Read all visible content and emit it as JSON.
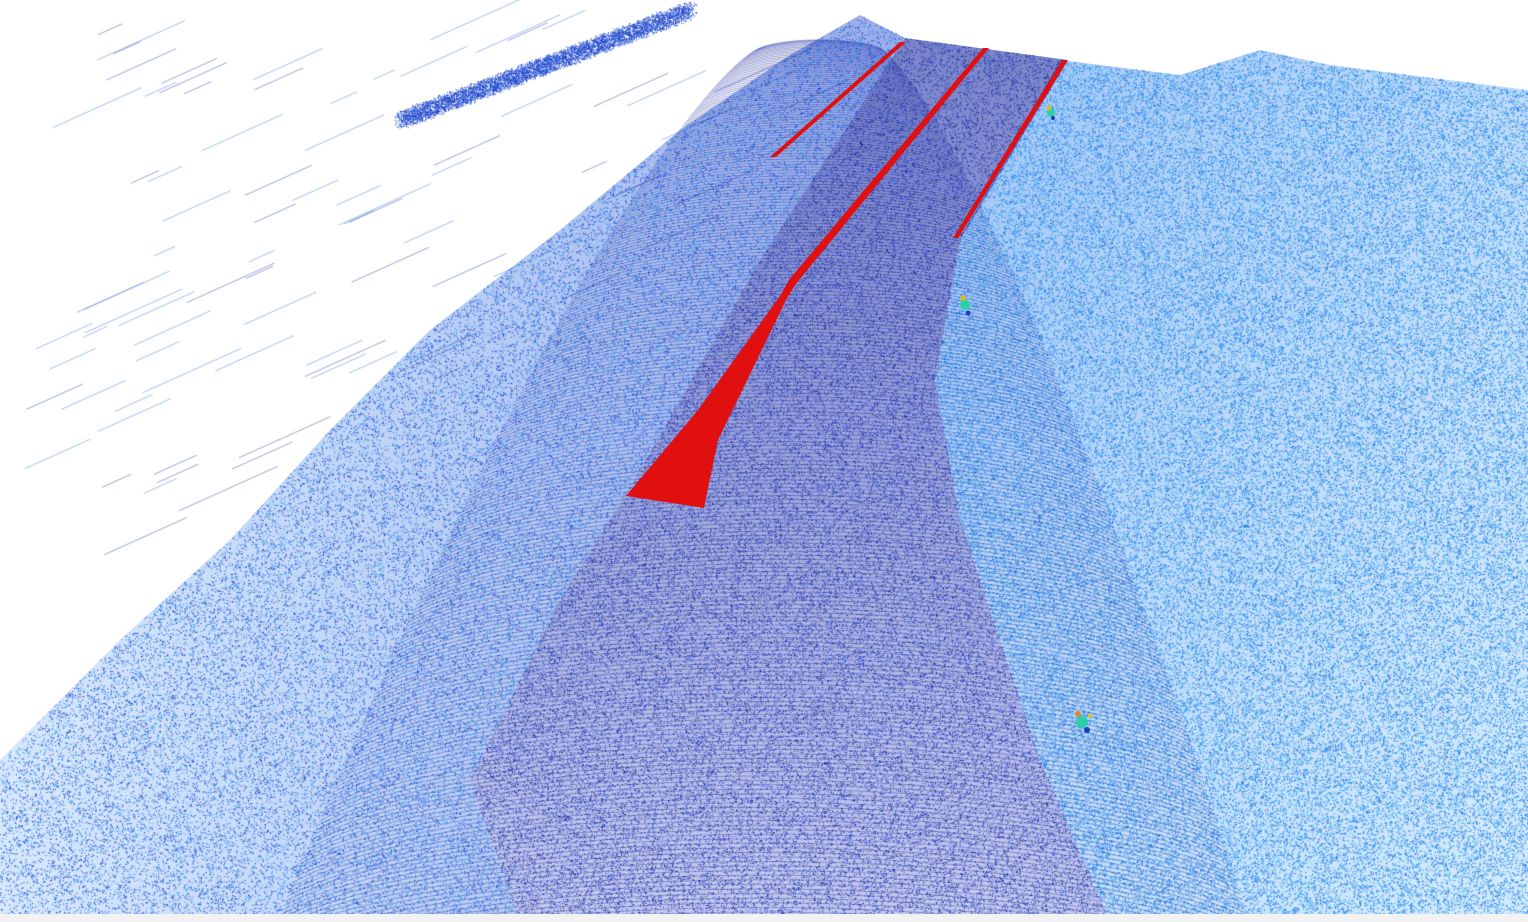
{
  "scene": {
    "kind": "lidar-point-cloud-road",
    "background_color": "#ffffff",
    "palette": {
      "road_dark": "#0b1a8a",
      "road_mid": "#1f3fd0",
      "terrain_light": "#2f8ff0",
      "terrain_cyan": "#3fb4f5",
      "accent_outlier": "#1fd0a0"
    },
    "lane_markings": {
      "color": "#e01010",
      "count": 3
    },
    "object_clusters": 3
  }
}
